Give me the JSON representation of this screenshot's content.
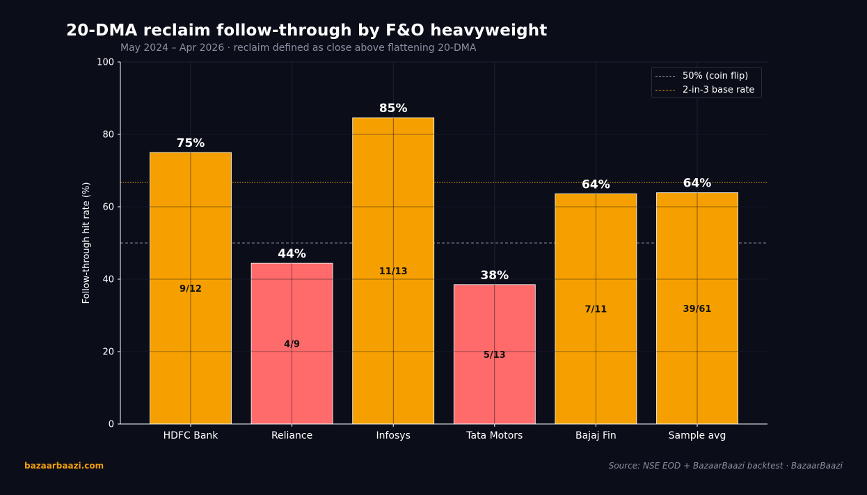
{
  "title": "20-DMA reclaim follow-through by F&O heavyweight",
  "subtitle": "May 2024 – Apr 2026  ·  reclaim defined as close above flattening 20-DMA",
  "footer": {
    "brand": "bazaarbaazi.com",
    "source": "Source: NSE EOD + BazaarBaazi backtest  ·  BazaarBaazi"
  },
  "legend": {
    "coin_flip": "50% (coin flip)",
    "base_rate": "2-in-3 base rate"
  },
  "colors": {
    "above": "#f5a000",
    "below": "#ff6b6b",
    "coin_flip_line": "#8a8fa0",
    "base_rate_line": "#f59e0b",
    "background": "#0b0e19"
  },
  "chart_data": {
    "type": "bar",
    "ylabel": "Follow-through hit rate (%)",
    "ylim": [
      0,
      100
    ],
    "yticks": [
      0,
      20,
      40,
      60,
      80,
      100
    ],
    "grid": true,
    "legend_position": "top-right",
    "categories": [
      "HDFC Bank",
      "Reliance",
      "Infosys",
      "Tata Motors",
      "Bajaj Fin",
      "Sample avg"
    ],
    "values": [
      75.0,
      44.4,
      84.6,
      38.5,
      63.6,
      63.9
    ],
    "value_labels": [
      "75%",
      "44%",
      "85%",
      "38%",
      "64%",
      "64%"
    ],
    "count_labels": [
      "9/12",
      "4/9",
      "11/13",
      "5/13",
      "7/11",
      "39/61"
    ],
    "reference_lines": [
      {
        "name": "50% (coin flip)",
        "y": 50,
        "style": "dashed"
      },
      {
        "name": "2-in-3 base rate",
        "y": 66.7,
        "style": "dotted"
      }
    ]
  }
}
